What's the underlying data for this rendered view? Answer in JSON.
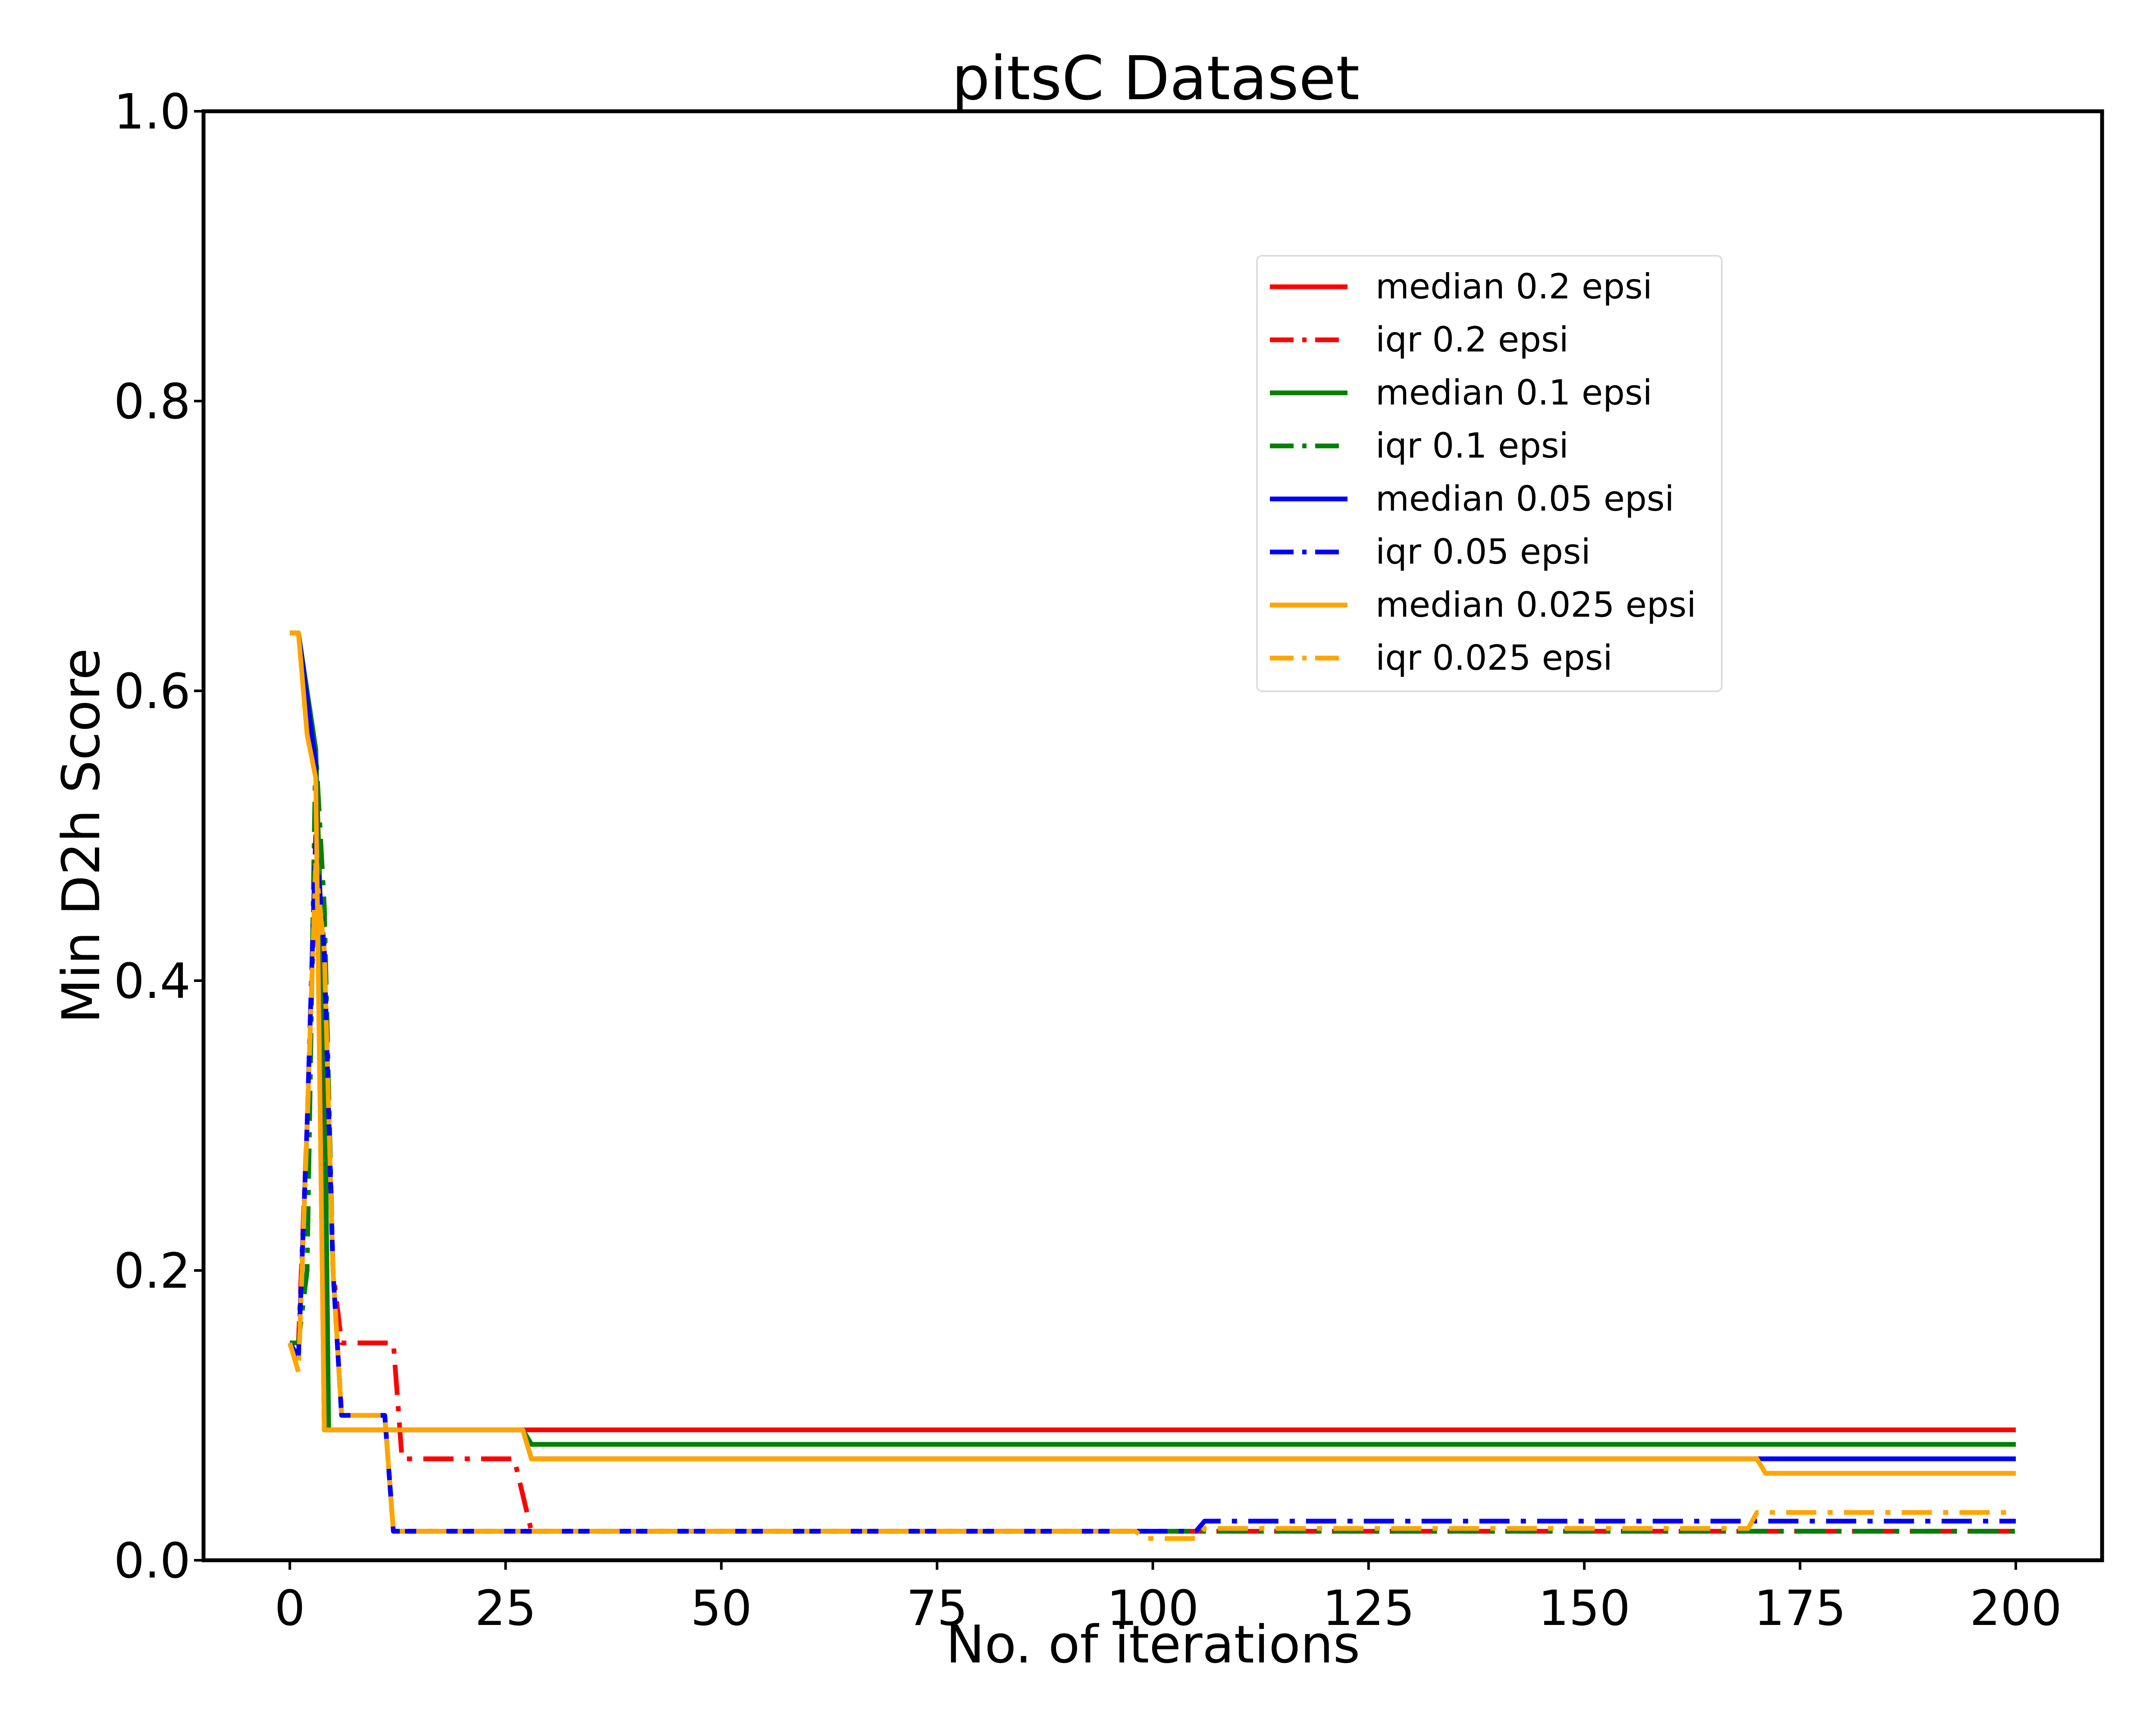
{
  "chart_data": {
    "type": "line",
    "title": "pitsC Dataset",
    "xlabel": "No. of iterations",
    "ylabel": "Min D2h Score",
    "xlim": [
      -10,
      210
    ],
    "ylim": [
      0,
      1
    ],
    "xticks": [
      0,
      25,
      50,
      75,
      100,
      125,
      150,
      175,
      200
    ],
    "xtick_labels": [
      "0",
      "25",
      "50",
      "75",
      "100",
      "125",
      "150",
      "175",
      "200"
    ],
    "yticks": [
      0,
      0.2,
      0.4,
      0.6,
      0.8,
      1.0
    ],
    "ytick_labels": [
      "0.0",
      "0.2",
      "0.4",
      "0.6",
      "0.8",
      "1.0"
    ],
    "grid": false,
    "legend_position": "upper-right inside",
    "series": [
      {
        "name": "median 0.2 epsi",
        "color": "#ff0000",
        "style": "solid",
        "points": [
          [
            0,
            0.64
          ],
          [
            1,
            0.64
          ],
          [
            2,
            0.58
          ],
          [
            3,
            0.55
          ],
          [
            3.6,
            0.3
          ],
          [
            4,
            0.09
          ],
          [
            12,
            0.09
          ],
          [
            28,
            0.09
          ],
          [
            200,
            0.09
          ]
        ]
      },
      {
        "name": "iqr 0.2 epsi",
        "color": "#ff0000",
        "style": "dashdot",
        "points": [
          [
            0,
            0.15
          ],
          [
            1,
            0.15
          ],
          [
            2,
            0.3
          ],
          [
            3,
            0.48
          ],
          [
            4,
            0.43
          ],
          [
            5,
            0.2
          ],
          [
            6,
            0.15
          ],
          [
            12,
            0.15
          ],
          [
            13,
            0.07
          ],
          [
            26,
            0.07
          ],
          [
            28,
            0.02
          ],
          [
            200,
            0.02
          ]
        ]
      },
      {
        "name": "median 0.1 epsi",
        "color": "#008000",
        "style": "solid",
        "points": [
          [
            0,
            0.64
          ],
          [
            1,
            0.64
          ],
          [
            3,
            0.56
          ],
          [
            4,
            0.36
          ],
          [
            4.5,
            0.09
          ],
          [
            27,
            0.09
          ],
          [
            28,
            0.08
          ],
          [
            200,
            0.08
          ]
        ]
      },
      {
        "name": "iqr 0.1 epsi",
        "color": "#008000",
        "style": "dashdot",
        "points": [
          [
            0,
            0.15
          ],
          [
            1,
            0.15
          ],
          [
            2,
            0.2
          ],
          [
            3,
            0.56
          ],
          [
            4,
            0.45
          ],
          [
            5,
            0.2
          ],
          [
            6,
            0.1
          ],
          [
            11,
            0.1
          ],
          [
            12,
            0.02
          ],
          [
            200,
            0.02
          ]
        ]
      },
      {
        "name": "median 0.05 epsi",
        "color": "#0000ff",
        "style": "solid",
        "points": [
          [
            0,
            0.64
          ],
          [
            1,
            0.64
          ],
          [
            3,
            0.55
          ],
          [
            4,
            0.09
          ],
          [
            27,
            0.09
          ],
          [
            28,
            0.07
          ],
          [
            200,
            0.07
          ]
        ]
      },
      {
        "name": "iqr 0.05 epsi",
        "color": "#0000ff",
        "style": "dashdot",
        "points": [
          [
            0,
            0.15
          ],
          [
            1,
            0.14
          ],
          [
            2,
            0.3
          ],
          [
            3,
            0.5
          ],
          [
            4,
            0.42
          ],
          [
            5,
            0.2
          ],
          [
            6,
            0.1
          ],
          [
            11,
            0.1
          ],
          [
            12,
            0.02
          ],
          [
            105,
            0.02
          ],
          [
            106,
            0.027
          ],
          [
            200,
            0.027
          ]
        ]
      },
      {
        "name": "median 0.025 epsi",
        "color": "#ffa500",
        "style": "solid",
        "points": [
          [
            0,
            0.64
          ],
          [
            1,
            0.64
          ],
          [
            2,
            0.57
          ],
          [
            3,
            0.54
          ],
          [
            4,
            0.09
          ],
          [
            27,
            0.09
          ],
          [
            28,
            0.07
          ],
          [
            170,
            0.07
          ],
          [
            171,
            0.06
          ],
          [
            200,
            0.06
          ]
        ]
      },
      {
        "name": "iqr 0.025 epsi",
        "color": "#ffa500",
        "style": "dashdot",
        "points": [
          [
            0,
            0.15
          ],
          [
            1,
            0.13
          ],
          [
            2,
            0.3
          ],
          [
            3,
            0.48
          ],
          [
            4,
            0.42
          ],
          [
            5,
            0.2
          ],
          [
            6,
            0.1
          ],
          [
            11,
            0.1
          ],
          [
            12,
            0.02
          ],
          [
            98,
            0.02
          ],
          [
            99,
            0.015
          ],
          [
            105,
            0.015
          ],
          [
            106,
            0.022
          ],
          [
            169,
            0.022
          ],
          [
            170,
            0.033
          ],
          [
            200,
            0.033
          ]
        ]
      }
    ]
  }
}
